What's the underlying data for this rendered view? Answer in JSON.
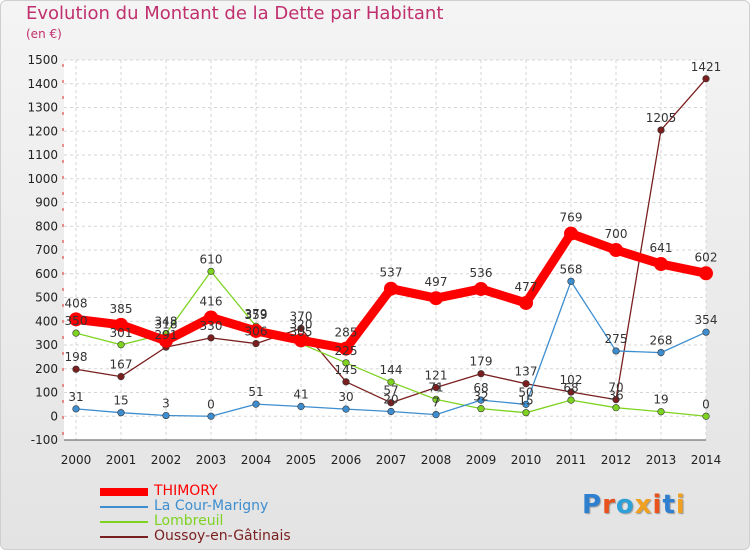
{
  "header": {
    "title": "Evolution du Montant de la Dette par Habitant",
    "unit": "(en €)"
  },
  "logo": {
    "letters": [
      "P",
      "r",
      "o",
      "x",
      "i",
      "t",
      "i"
    ],
    "colors": [
      "#2e7fd0",
      "#e8521c",
      "#2ea0d8",
      "#f0a020",
      "#e8521c",
      "#2e7fd0",
      "#f0a020"
    ]
  },
  "chart_data": {
    "type": "line",
    "title": "Evolution du Montant de la Dette par Habitant",
    "ylabel": "(en €)",
    "ylim": [
      -100,
      1500
    ],
    "yticks": [
      -100,
      0,
      100,
      200,
      300,
      400,
      500,
      600,
      700,
      800,
      900,
      1000,
      1100,
      1200,
      1300,
      1400,
      1500
    ],
    "x": [
      "2000",
      "2001",
      "2002",
      "2003",
      "2004",
      "2005",
      "2006",
      "2007",
      "2008",
      "2009",
      "2010",
      "2011",
      "2012",
      "2013",
      "2014"
    ],
    "legend_position": "bottom-left",
    "series": [
      {
        "name": "THIMORY",
        "color": "#ff0000",
        "values": [
          408,
          385,
          318,
          416,
          359,
          320,
          285,
          537,
          497,
          536,
          477,
          769,
          700,
          641,
          602
        ],
        "labels": [
          "408",
          "385",
          "318",
          "416",
          "359",
          "320",
          "285",
          "537",
          "497",
          "536",
          "477",
          "769",
          "700",
          "641",
          "602"
        ]
      },
      {
        "name": "La Cour-Marigny",
        "color": "#3e8ecf",
        "values": [
          31,
          15,
          3,
          0,
          51,
          41,
          30,
          20,
          7,
          68,
          50,
          568,
          275,
          268,
          354
        ],
        "labels": [
          "31",
          "15",
          "3",
          "0",
          "51",
          "41",
          "30",
          "20",
          "7",
          "68",
          "50",
          "568",
          "275",
          "268",
          "354"
        ]
      },
      {
        "name": "Lombreuil",
        "color": "#7ed321",
        "values": [
          350,
          301,
          348,
          610,
          379,
          305,
          225,
          144,
          71,
          32,
          15,
          68,
          36,
          19,
          0
        ],
        "labels": [
          "350",
          "301",
          "348",
          "610",
          "379",
          "305",
          "225",
          "144",
          "71",
          "32",
          "15",
          "68",
          "36",
          "19",
          "0"
        ]
      },
      {
        "name": "Oussoy-en-Gâtinais",
        "color": "#7a1f1f",
        "values": [
          198,
          167,
          291,
          330,
          306,
          370,
          145,
          57,
          121,
          179,
          137,
          102,
          70,
          1205,
          1421
        ],
        "labels": [
          "198",
          "167",
          "291",
          "330",
          "306",
          "370",
          "145",
          "57",
          "121",
          "179",
          "137",
          "102",
          "70",
          "1205",
          "1421"
        ]
      }
    ]
  }
}
